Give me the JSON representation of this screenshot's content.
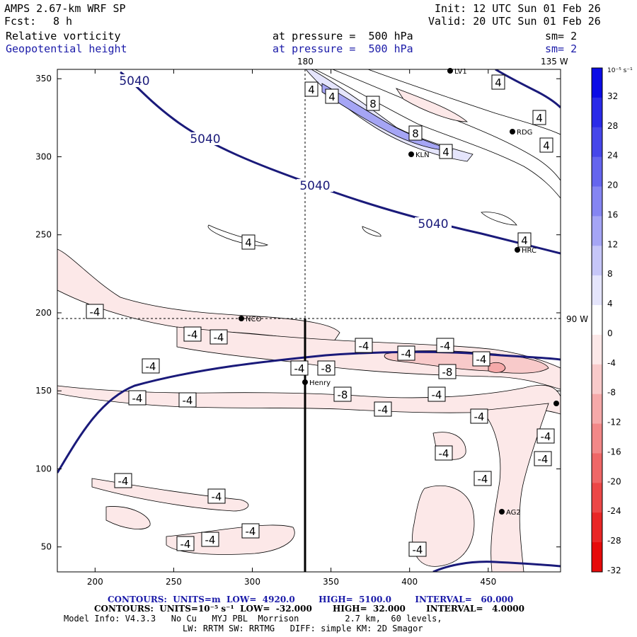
{
  "header": {
    "model": "AMPS 2.67-km WRF SP",
    "fcst_label": "Fcst:",
    "fcst_value": "8 h",
    "init": "Init: 12 UTC Sun 01 Feb 26",
    "valid": "Valid: 20 UTC Sun 01 Feb 26",
    "field1": "Relative vorticity",
    "field2": "Geopotential height",
    "pressure1": "at pressure =  500 hPa",
    "pressure2": "at pressure =  500 hPa",
    "sm1": "sm= 2",
    "sm2": "sm= 2",
    "lon180": "180",
    "lon135w": "135 W",
    "lon90w": "90 W"
  },
  "colorbar": {
    "unit": "10⁻⁵ s⁻¹",
    "labels": [
      "32",
      "28",
      "24",
      "20",
      "16",
      "12",
      "8",
      "4",
      "0",
      "-4",
      "-8",
      "-12",
      "-16",
      "-20",
      "-24",
      "-28",
      "-32"
    ],
    "colors": [
      "#0b0be6",
      "#2a2ae8",
      "#4646ea",
      "#6565ee",
      "#8585f2",
      "#a5a5f5",
      "#c6c6f8",
      "#e5e5fc",
      "#ffffff",
      "#fce8e8",
      "#f8caca",
      "#f5a9a9",
      "#f28888",
      "#ef6767",
      "#ec4747",
      "#e92626",
      "#e60a0a"
    ]
  },
  "stations": [
    {
      "name": "LV1"
    },
    {
      "name": "RDG"
    },
    {
      "name": "KLN"
    },
    {
      "name": "HRC"
    },
    {
      "name": "NCO"
    },
    {
      "name": "Henry"
    },
    {
      "name": "AG2"
    }
  ],
  "footer": {
    "contours1": "CONTOURS:  UNITS=m  LOW=  4920.0        HIGH=  5100.0        INTERVAL=   60.000",
    "contours2": "CONTOURS:  UNITS=10⁻⁵ s⁻¹  LOW=  -32.000       HIGH=  32.000       INTERVAL=   4.0000",
    "model_info": "Model Info: V4.3.3   No Cu   MYJ PBL  Morrison         2.7 km,  60 levels,",
    "model_info2": "LW: RRTM SW: RRTMG   DIFF: simple KM: 2D Smagor"
  },
  "chart_data": {
    "type": "contour",
    "title": "Relative vorticity and Geopotential height at 500 hPa",
    "xlim": [
      176,
      496
    ],
    "ylim": [
      34,
      356
    ],
    "xticks": [
      200,
      250,
      300,
      350,
      400,
      450
    ],
    "yticks": [
      50,
      100,
      150,
      200,
      250,
      300,
      350
    ],
    "height_contour_labels": [
      "5040",
      "5040",
      "5040",
      "5040"
    ],
    "vorticity_contour_labels": [
      "4",
      "4",
      "4",
      "8",
      "4",
      "8",
      "4",
      "4",
      "4",
      "4",
      "-4",
      "-4",
      "-4",
      "-4",
      "-4",
      "-8",
      "-4",
      "-4",
      "-4",
      "-8",
      "-4",
      "-8",
      "-4",
      "-4",
      "-4",
      "-4",
      "-4",
      "-4",
      "-4",
      "-4",
      "-4",
      "-4",
      "-4",
      "-4",
      "-4",
      "-4",
      "-4",
      "-4",
      "-4"
    ],
    "vertical_cross_section_x": 334,
    "horizontal_dashed_y": 196
  }
}
